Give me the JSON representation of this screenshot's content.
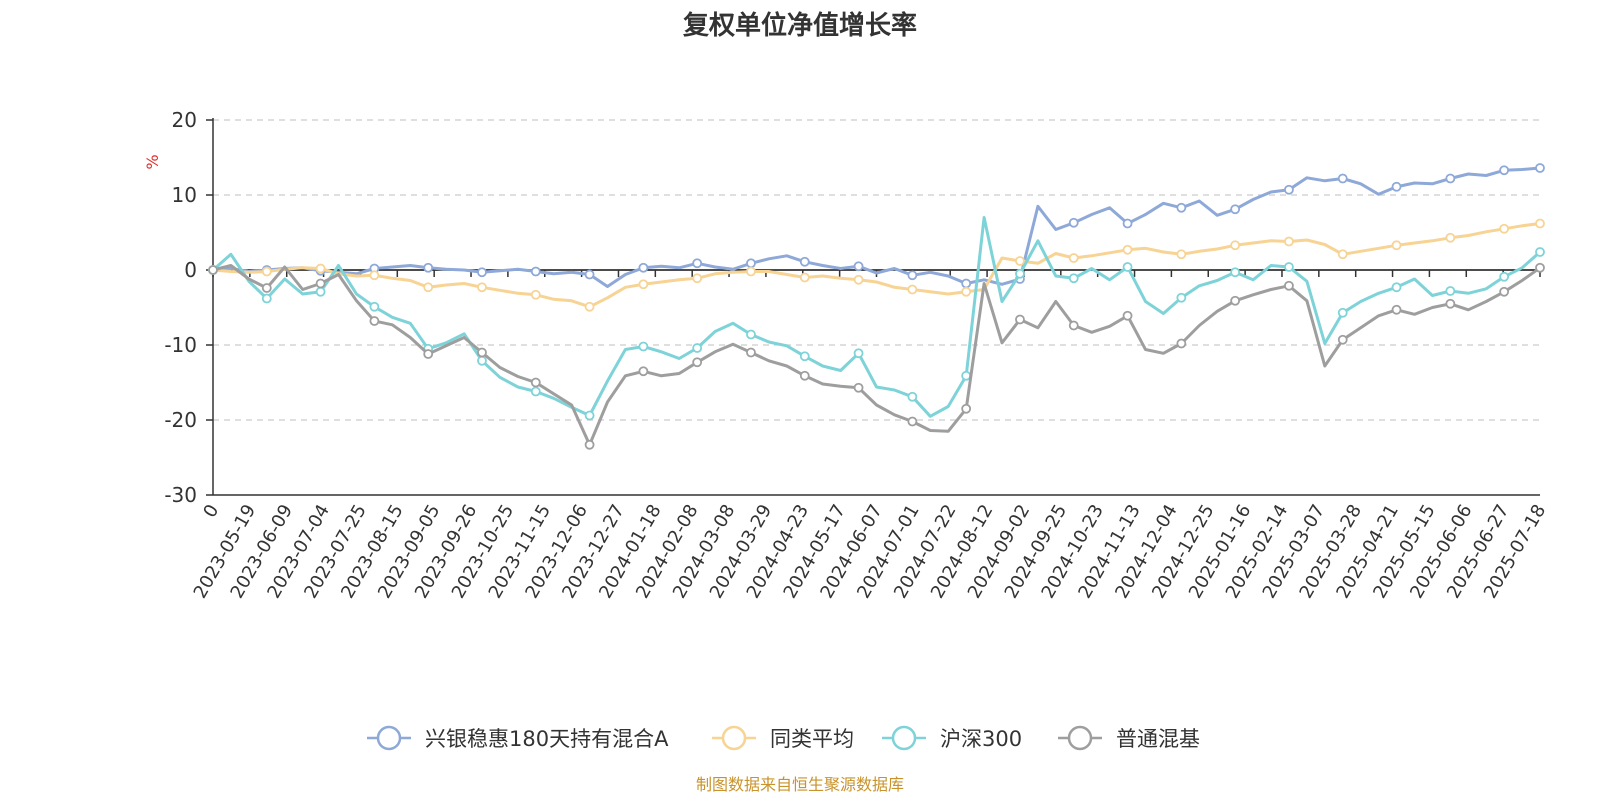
{
  "chart_data": {
    "type": "line",
    "title": "复权单位净值增长率",
    "ylabel": "%",
    "ylim": [
      -30,
      20
    ],
    "yticks": [
      20,
      10,
      0,
      -10,
      -20,
      -30
    ],
    "grid": true,
    "legend_position": "bottom",
    "source_note": "制图数据来自恒生聚源数据库",
    "x_labels": [
      "0",
      "2023-05-19",
      "2023-06-09",
      "2023-07-04",
      "2023-07-25",
      "2023-08-15",
      "2023-09-05",
      "2023-09-26",
      "2023-10-25",
      "2023-11-15",
      "2023-12-06",
      "2023-12-27",
      "2024-01-18",
      "2024-02-08",
      "2024-03-08",
      "2024-03-29",
      "2024-04-23",
      "2024-05-17",
      "2024-06-07",
      "2024-07-01",
      "2024-07-22",
      "2024-08-12",
      "2024-09-02",
      "2024-09-25",
      "2024-10-23",
      "2024-11-13",
      "2024-12-04",
      "2024-12-25",
      "2025-01-16",
      "2025-02-14",
      "2025-03-07",
      "2025-03-28",
      "2025-04-21",
      "2025-05-15",
      "2025-06-06",
      "2025-06-27",
      "2025-07-18"
    ],
    "series": [
      {
        "name": "兴银稳惠180天持有混合A",
        "color": "#8ea8d8",
        "values": [
          0,
          0.2,
          -0.2,
          0,
          0.2,
          0.3,
          -0.1,
          -0.3,
          -0.5,
          0.2,
          0.4,
          0.6,
          0.3,
          0.1,
          0,
          -0.3,
          -0.1,
          0.1,
          -0.2,
          -0.5,
          -0.3,
          -0.6,
          -2.2,
          -0.6,
          0.3,
          0.5,
          0.3,
          0.9,
          0.4,
          0.1,
          0.9,
          1.5,
          1.9,
          1.1,
          0.6,
          0.2,
          0.5,
          -0.4,
          0.2,
          -0.7,
          -0.3,
          -0.8,
          -1.8,
          -1.3,
          -1.9,
          -1.2,
          8.5,
          5.4,
          6.3,
          7.4,
          8.3,
          6.2,
          7.4,
          8.9,
          8.3,
          9.2,
          7.3,
          8.1,
          9.4,
          10.4,
          10.7,
          12.3,
          11.9,
          12.2,
          11.5,
          10.1,
          11.1,
          11.6,
          11.5,
          12.2,
          12.8,
          12.6,
          13.3,
          13.4,
          13.6
        ]
      },
      {
        "name": "同类平均",
        "color": "#f7d394",
        "values": [
          0,
          -0.2,
          -0.3,
          -0.2,
          0.1,
          0.3,
          0.2,
          -0.5,
          -0.8,
          -0.7,
          -1.1,
          -1.4,
          -2.3,
          -2.0,
          -1.8,
          -2.3,
          -2.7,
          -3.1,
          -3.3,
          -3.9,
          -4.1,
          -4.9,
          -3.7,
          -2.3,
          -1.9,
          -1.6,
          -1.3,
          -1.1,
          -0.5,
          -0.3,
          -0.2,
          -0.2,
          -0.6,
          -1.0,
          -0.8,
          -1.1,
          -1.3,
          -1.6,
          -2.3,
          -2.6,
          -2.9,
          -3.2,
          -2.9,
          -2.6,
          1.6,
          1.2,
          0.9,
          2.2,
          1.6,
          1.9,
          2.3,
          2.7,
          2.9,
          2.4,
          2.1,
          2.5,
          2.8,
          3.3,
          3.6,
          3.9,
          3.8,
          4.0,
          3.4,
          2.1,
          2.5,
          2.9,
          3.3,
          3.6,
          3.9,
          4.3,
          4.6,
          5.1,
          5.5,
          5.9,
          6.2
        ]
      },
      {
        "name": "沪深300",
        "color": "#7dd3d8",
        "values": [
          0,
          2.1,
          -1.5,
          -3.8,
          -1.2,
          -3.2,
          -2.9,
          0.6,
          -3.2,
          -4.9,
          -6.3,
          -7.1,
          -10.5,
          -9.7,
          -8.5,
          -12.1,
          -14.3,
          -15.6,
          -16.2,
          -17.1,
          -18.3,
          -19.4,
          -14.8,
          -10.6,
          -10.2,
          -10.9,
          -11.8,
          -10.4,
          -8.2,
          -7.1,
          -8.6,
          -9.6,
          -10.1,
          -11.5,
          -12.8,
          -13.4,
          -11.1,
          -15.6,
          -16.0,
          -16.9,
          -19.5,
          -18.2,
          -14.1,
          7.0,
          -4.2,
          -0.5,
          3.9,
          -0.8,
          -1.1,
          0.2,
          -1.3,
          0.4,
          -4.2,
          -5.8,
          -3.7,
          -2.1,
          -1.4,
          -0.3,
          -1.3,
          0.6,
          0.4,
          -1.5,
          -9.8,
          -5.7,
          -4.2,
          -3.1,
          -2.3,
          -1.2,
          -3.4,
          -2.8,
          -3.1,
          -2.5,
          -0.9,
          0.3,
          2.4
        ]
      },
      {
        "name": "普通混基",
        "color": "#9e9e9e",
        "values": [
          0,
          0.6,
          -1.2,
          -2.4,
          0.4,
          -2.6,
          -1.8,
          -0.6,
          -4.1,
          -6.8,
          -7.3,
          -9.0,
          -11.2,
          -10.1,
          -9.0,
          -11.0,
          -13.0,
          -14.2,
          -15.0,
          -16.5,
          -18.0,
          -23.3,
          -17.6,
          -14.1,
          -13.5,
          -14.1,
          -13.8,
          -12.3,
          -10.9,
          -9.9,
          -11.0,
          -12.1,
          -12.8,
          -14.1,
          -15.2,
          -15.5,
          -15.7,
          -18.0,
          -19.3,
          -20.2,
          -21.4,
          -21.5,
          -18.5,
          -1.8,
          -9.7,
          -6.6,
          -7.7,
          -4.2,
          -7.4,
          -8.3,
          -7.5,
          -6.1,
          -10.6,
          -11.1,
          -9.8,
          -7.4,
          -5.5,
          -4.1,
          -3.3,
          -2.6,
          -2.1,
          -4.1,
          -12.8,
          -9.3,
          -7.7,
          -6.1,
          -5.3,
          -5.9,
          -5.0,
          -4.5,
          -5.3,
          -4.2,
          -2.9,
          -1.4,
          0.3
        ]
      }
    ]
  }
}
